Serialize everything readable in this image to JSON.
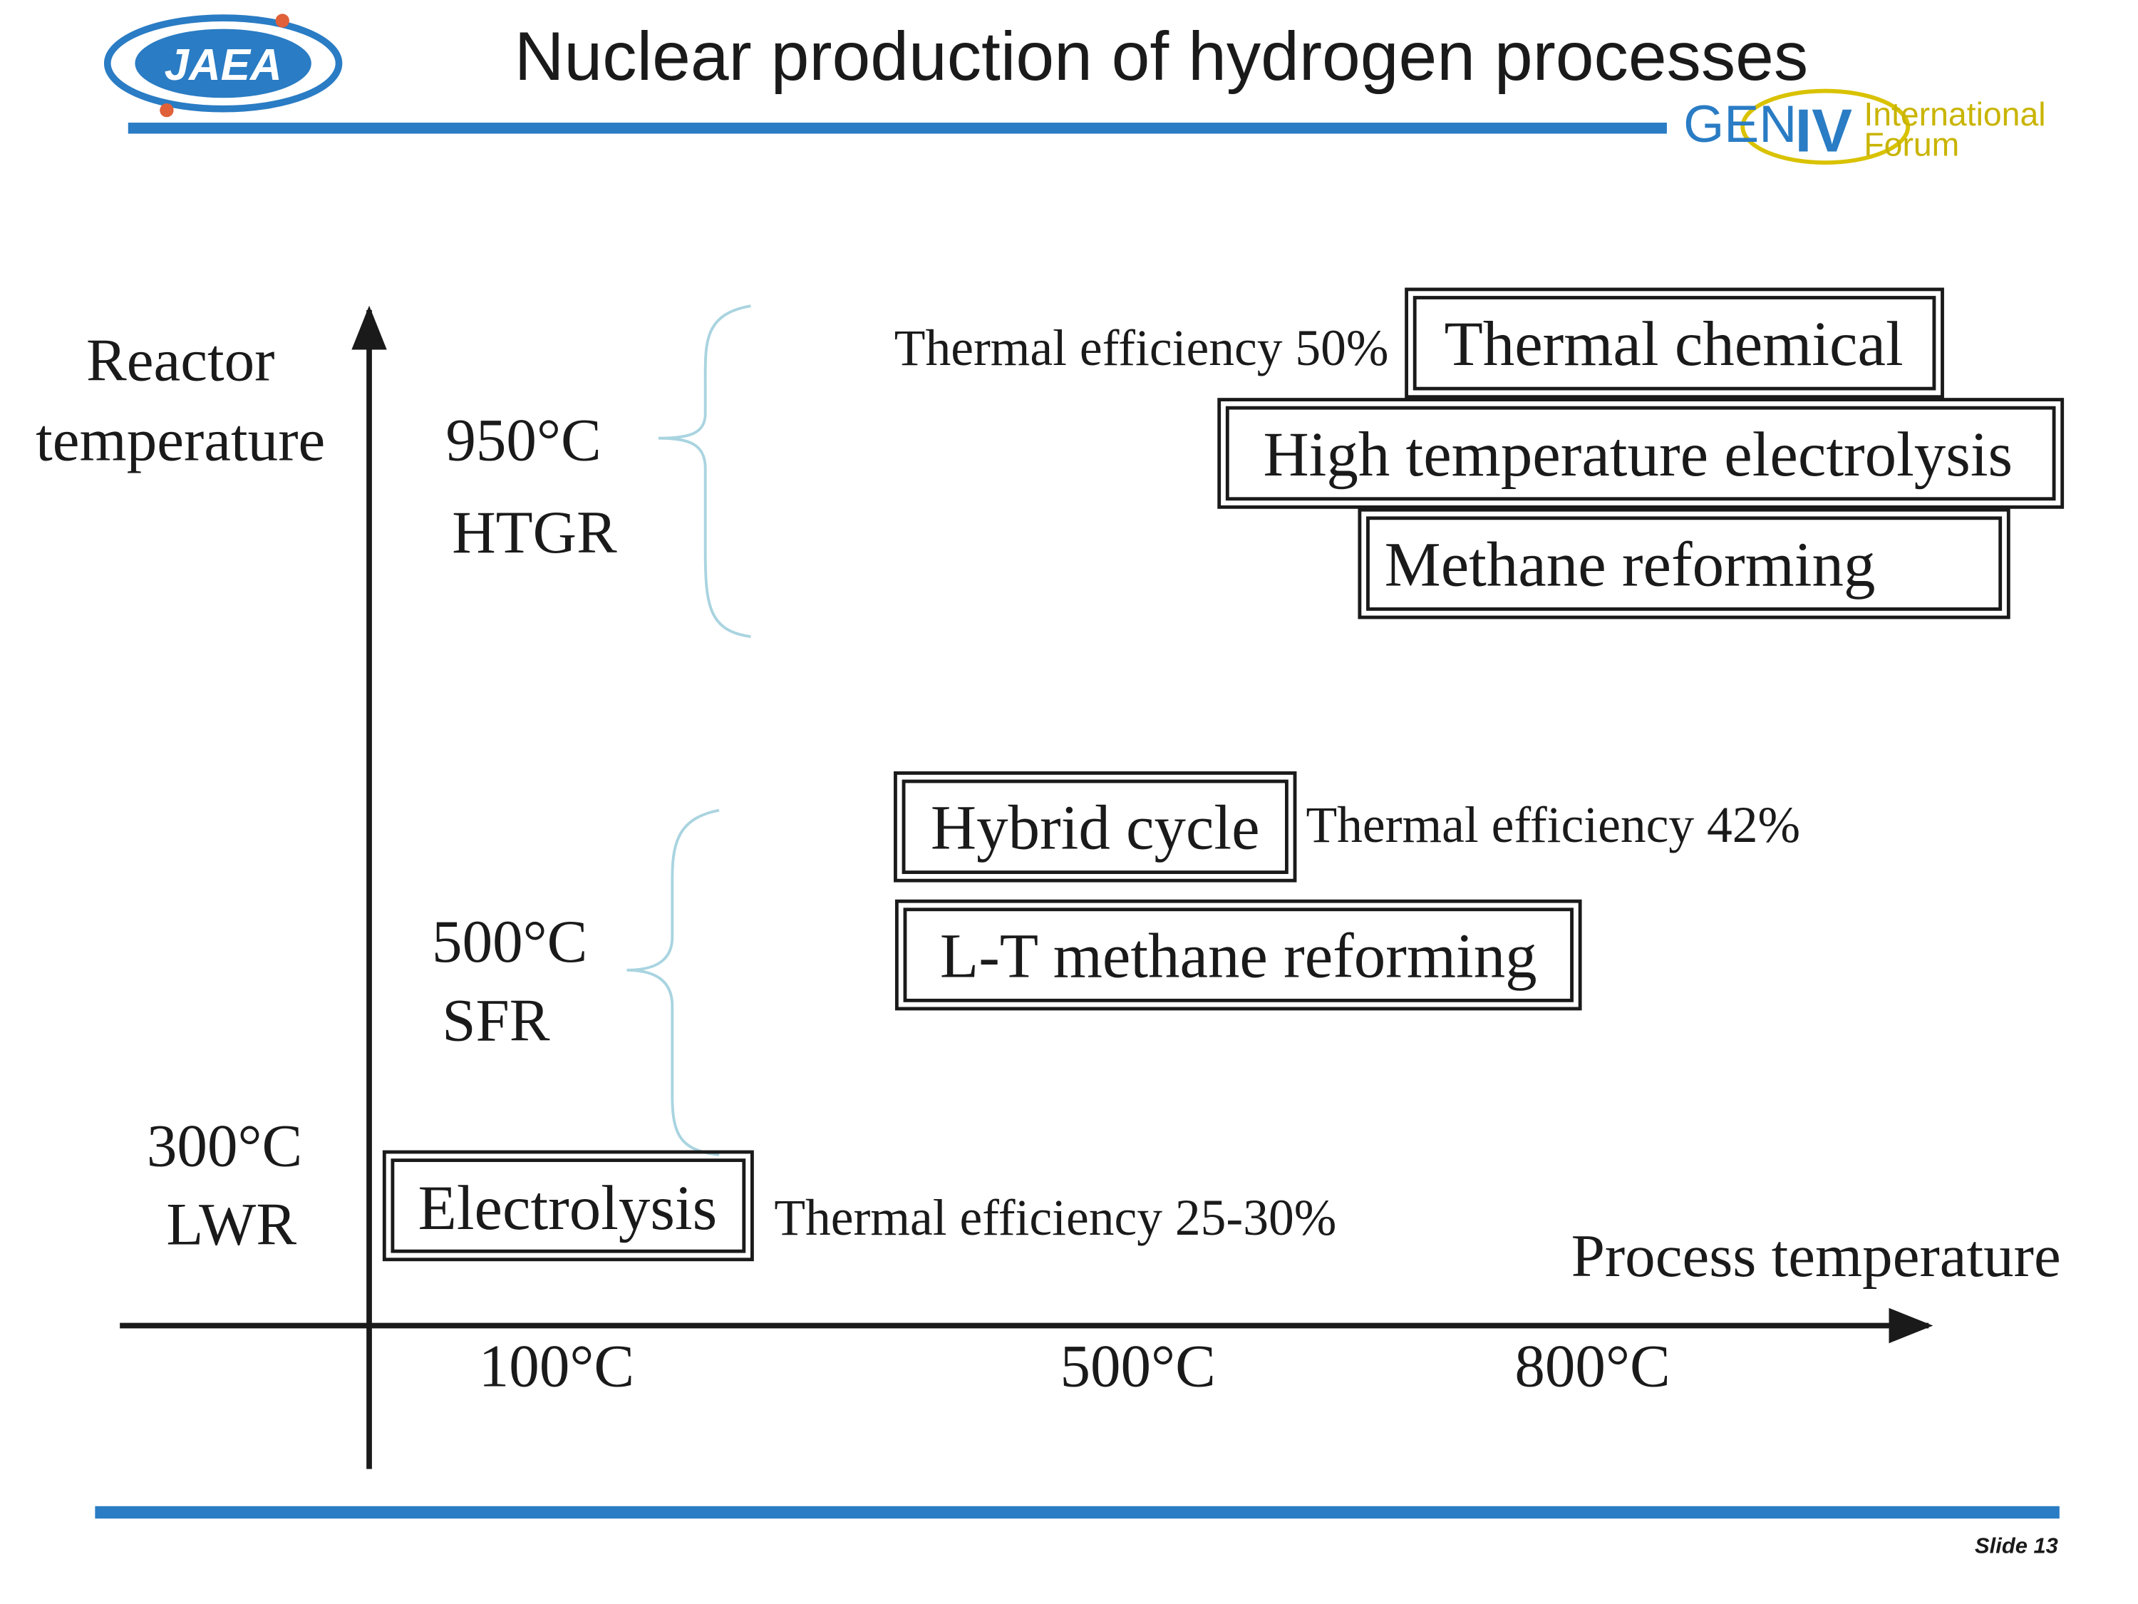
{
  "header": {
    "title": "Nuclear production of hydrogen processes",
    "left_logo": "JAEA",
    "right_logo": {
      "gen": "GEN",
      "iv": "IV",
      "line1": "International",
      "line2": "Forum"
    }
  },
  "diagram": {
    "y_axis_label": [
      "Reactor",
      "temperature"
    ],
    "x_axis_label": "Process temperature",
    "x_ticks": [
      "100°C",
      "500°C",
      "800°C"
    ],
    "reactors": [
      {
        "temperature": "950°C",
        "name": "HTGR"
      },
      {
        "temperature": "500°C",
        "name": "SFR"
      },
      {
        "temperature": "300°C",
        "name": "LWR"
      }
    ],
    "processes": [
      "Thermal chemical",
      "High temperature electrolysis",
      "Methane reforming",
      "Hybrid cycle",
      "L-T methane reforming",
      "Electrolysis"
    ],
    "efficiencies": [
      "Thermal efficiency 50%",
      "Thermal efficiency 42%",
      "Thermal efficiency 25-30%"
    ]
  },
  "footer": {
    "slide": "Slide 13"
  }
}
